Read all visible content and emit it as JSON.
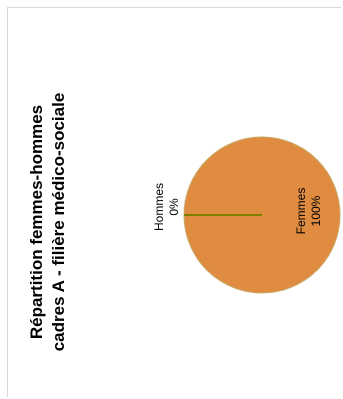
{
  "chart_data": {
    "type": "pie",
    "title_lines": [
      "Répartition femmes-hommes",
      "cadres A - filière médico-sociale"
    ],
    "slices": [
      {
        "name": "Hommes",
        "value": 0,
        "label": "0%",
        "color": "#7f7f00"
      },
      {
        "name": "Femmes",
        "value": 100,
        "label": "100%",
        "color": "#e08c40"
      }
    ]
  }
}
